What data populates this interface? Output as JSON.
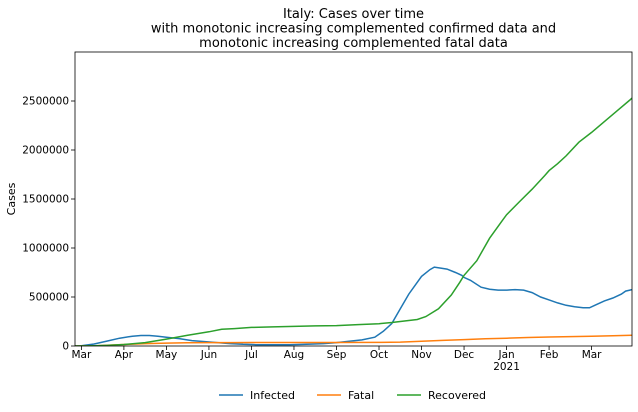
{
  "chart_data": {
    "type": "line",
    "title": [
      "Italy: Cases over time",
      "with monotonic increasing complemented confirmed data and",
      "monotonic increasing complemented fatal data"
    ],
    "xlabel": "",
    "ylabel": "Cases",
    "ylim": [
      0,
      3000000
    ],
    "y_ticks": [
      0,
      500000,
      1000000,
      1500000,
      2000000,
      2500000
    ],
    "x_ticks": [
      {
        "month": 3,
        "label": "Mar"
      },
      {
        "month": 4,
        "label": "Apr"
      },
      {
        "month": 5,
        "label": "May"
      },
      {
        "month": 6,
        "label": "Jun"
      },
      {
        "month": 7,
        "label": "Jul"
      },
      {
        "month": 8,
        "label": "Aug"
      },
      {
        "month": 9,
        "label": "Sep"
      },
      {
        "month": 10,
        "label": "Oct"
      },
      {
        "month": 11,
        "label": "Nov"
      },
      {
        "month": 12,
        "label": "Dec"
      },
      {
        "month": 13,
        "label": "Jan",
        "sublabel": "2021"
      },
      {
        "month": 14,
        "label": "Feb"
      },
      {
        "month": 15,
        "label": "Mar"
      }
    ],
    "x_range": [
      2.85,
      15.95
    ],
    "x_unit": "month index (3 = 1 Mar 2020, 13 = 1 Jan 2021)",
    "grid": false,
    "legend_position": "bottom-center",
    "series": [
      {
        "name": "Infected",
        "color": "#1f77b4",
        "points": [
          [
            2.85,
            0
          ],
          [
            3.0,
            2000
          ],
          [
            3.3,
            20000
          ],
          [
            3.6,
            50000
          ],
          [
            3.9,
            80000
          ],
          [
            4.2,
            100000
          ],
          [
            4.4,
            107000
          ],
          [
            4.6,
            107000
          ],
          [
            4.8,
            100000
          ],
          [
            5.0,
            90000
          ],
          [
            5.3,
            75000
          ],
          [
            5.6,
            55000
          ],
          [
            5.9,
            45000
          ],
          [
            6.2,
            35000
          ],
          [
            6.5,
            25000
          ],
          [
            6.8,
            17000
          ],
          [
            7.1,
            13000
          ],
          [
            7.5,
            12500
          ],
          [
            7.9,
            13000
          ],
          [
            8.3,
            17000
          ],
          [
            8.7,
            25000
          ],
          [
            9.0,
            35000
          ],
          [
            9.3,
            48000
          ],
          [
            9.6,
            62000
          ],
          [
            9.9,
            90000
          ],
          [
            10.1,
            150000
          ],
          [
            10.3,
            230000
          ],
          [
            10.5,
            380000
          ],
          [
            10.7,
            530000
          ],
          [
            10.85,
            620000
          ],
          [
            11.0,
            710000
          ],
          [
            11.2,
            780000
          ],
          [
            11.3,
            805000
          ],
          [
            11.45,
            795000
          ],
          [
            11.6,
            785000
          ],
          [
            11.8,
            750000
          ],
          [
            11.95,
            720000
          ],
          [
            12.0,
            700000
          ],
          [
            12.15,
            670000
          ],
          [
            12.4,
            600000
          ],
          [
            12.6,
            580000
          ],
          [
            12.8,
            570000
          ],
          [
            13.0,
            570000
          ],
          [
            13.2,
            575000
          ],
          [
            13.4,
            570000
          ],
          [
            13.6,
            545000
          ],
          [
            13.8,
            500000
          ],
          [
            14.0,
            470000
          ],
          [
            14.2,
            440000
          ],
          [
            14.4,
            415000
          ],
          [
            14.6,
            400000
          ],
          [
            14.8,
            390000
          ],
          [
            14.95,
            390000
          ],
          [
            15.1,
            420000
          ],
          [
            15.3,
            460000
          ],
          [
            15.5,
            490000
          ],
          [
            15.7,
            530000
          ],
          [
            15.8,
            560000
          ],
          [
            15.9,
            570000
          ],
          [
            15.95,
            575000
          ]
        ]
      },
      {
        "name": "Fatal",
        "color": "#ff7f0e",
        "points": [
          [
            2.85,
            0
          ],
          [
            3.3,
            1500
          ],
          [
            3.6,
            7000
          ],
          [
            4.0,
            15000
          ],
          [
            4.5,
            25000
          ],
          [
            5.0,
            30000
          ],
          [
            5.5,
            33000
          ],
          [
            6.0,
            34500
          ],
          [
            6.5,
            35000
          ],
          [
            7.0,
            35300
          ],
          [
            8.0,
            35500
          ],
          [
            9.0,
            35700
          ],
          [
            10.0,
            37000
          ],
          [
            10.5,
            40000
          ],
          [
            11.0,
            48000
          ],
          [
            11.5,
            57000
          ],
          [
            12.0,
            65000
          ],
          [
            12.5,
            73000
          ],
          [
            13.0,
            80000
          ],
          [
            13.5,
            87000
          ],
          [
            14.0,
            92000
          ],
          [
            14.5,
            96000
          ],
          [
            15.0,
            100000
          ],
          [
            15.5,
            104000
          ],
          [
            15.95,
            109000
          ]
        ]
      },
      {
        "name": "Recovered",
        "color": "#2ca02c",
        "points": [
          [
            2.85,
            0
          ],
          [
            3.3,
            2000
          ],
          [
            3.6,
            6000
          ],
          [
            4.0,
            15000
          ],
          [
            4.5,
            35000
          ],
          [
            5.0,
            70000
          ],
          [
            5.5,
            110000
          ],
          [
            6.0,
            145000
          ],
          [
            6.3,
            170000
          ],
          [
            6.6,
            178000
          ],
          [
            7.0,
            190000
          ],
          [
            7.5,
            195000
          ],
          [
            8.0,
            200000
          ],
          [
            8.5,
            205000
          ],
          [
            9.0,
            208000
          ],
          [
            9.5,
            218000
          ],
          [
            10.0,
            228000
          ],
          [
            10.3,
            240000
          ],
          [
            10.6,
            255000
          ],
          [
            10.9,
            270000
          ],
          [
            11.1,
            300000
          ],
          [
            11.4,
            380000
          ],
          [
            11.7,
            520000
          ],
          [
            11.9,
            650000
          ],
          [
            12.0,
            720000
          ],
          [
            12.3,
            870000
          ],
          [
            12.6,
            1100000
          ],
          [
            12.9,
            1280000
          ],
          [
            13.0,
            1340000
          ],
          [
            13.3,
            1470000
          ],
          [
            13.6,
            1600000
          ],
          [
            13.9,
            1740000
          ],
          [
            14.0,
            1790000
          ],
          [
            14.2,
            1860000
          ],
          [
            14.4,
            1940000
          ],
          [
            14.7,
            2080000
          ],
          [
            15.0,
            2180000
          ],
          [
            15.3,
            2290000
          ],
          [
            15.6,
            2400000
          ],
          [
            15.9,
            2510000
          ],
          [
            15.95,
            2530000
          ]
        ]
      }
    ]
  }
}
